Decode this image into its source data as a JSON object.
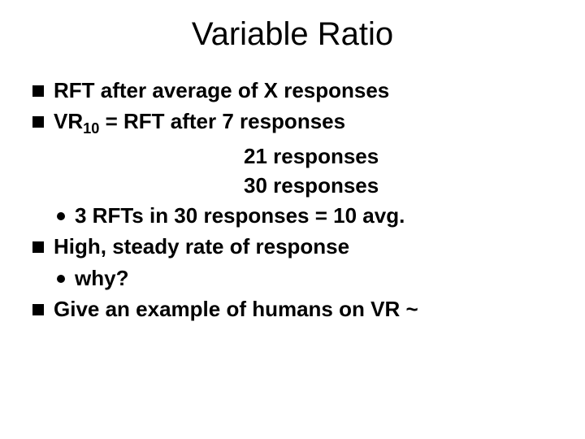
{
  "slide": {
    "title": "Variable Ratio",
    "background_color": "#ffffff",
    "text_color": "#000000",
    "title_fontsize": 40,
    "body_fontsize": 26,
    "body_fontweight": "bold",
    "font_family": "Arial",
    "bullets": {
      "b1": "RFT after average of X responses",
      "b2_prefix": "VR",
      "b2_sub": "10",
      "b2_rest": " =  RFT after 7 responses",
      "center1": "21 responses",
      "center2": "30 responses",
      "sub1": "3 RFTs in 30 responses = 10 avg.",
      "b3": "High, steady rate of response",
      "sub2": "why?",
      "b4": "Give an example of humans on VR ~"
    },
    "square_bullet_size": 14,
    "round_bullet_size": 10
  }
}
